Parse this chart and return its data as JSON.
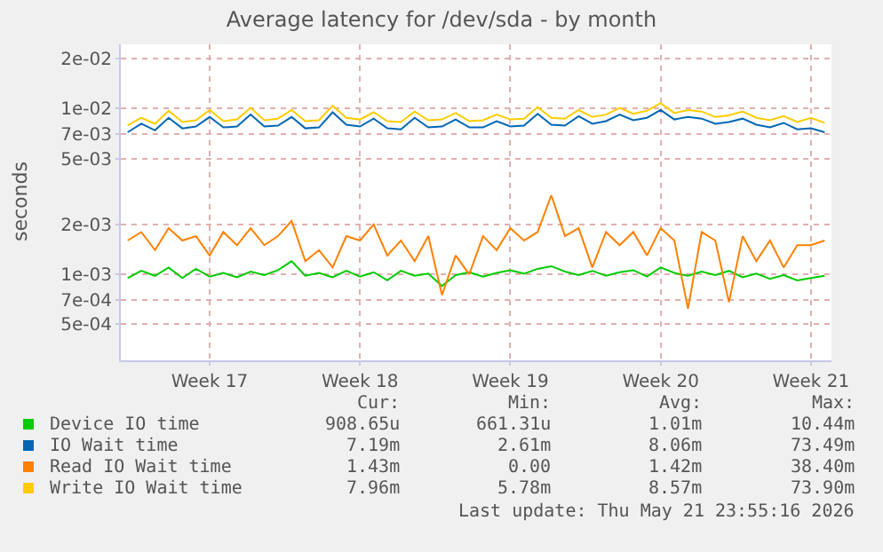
{
  "chart_data": {
    "type": "line",
    "title": "Average latency for /dev/sda - by month",
    "ylabel": "seconds",
    "categories": [
      null,
      null,
      null,
      null,
      null,
      null,
      "Week 17",
      null,
      null,
      null,
      null,
      null,
      null,
      null,
      null,
      null,
      null,
      "Week 18",
      null,
      null,
      null,
      null,
      null,
      null,
      null,
      null,
      null,
      null,
      "Week 19",
      null,
      null,
      null,
      null,
      null,
      null,
      null,
      null,
      null,
      null,
      "Week 20",
      null,
      null,
      null,
      null,
      null,
      null,
      null,
      null,
      null,
      null,
      "Week 21",
      null
    ],
    "series": [
      {
        "name": "Device IO time",
        "color": "#00cc00",
        "values": [
          0.00095,
          0.00105,
          0.00098,
          0.0011,
          0.00095,
          0.00108,
          0.00097,
          0.00102,
          0.00096,
          0.00104,
          0.00099,
          0.00106,
          0.0012,
          0.00098,
          0.00102,
          0.00096,
          0.00105,
          0.00097,
          0.00103,
          0.00092,
          0.00105,
          0.00098,
          0.00101,
          0.00085,
          0.00099,
          0.00103,
          0.00097,
          0.00102,
          0.00106,
          0.00101,
          0.00108,
          0.00112,
          0.00104,
          0.00099,
          0.00105,
          0.00098,
          0.00103,
          0.00106,
          0.00097,
          0.0011,
          0.00102,
          0.00098,
          0.00104,
          0.00099,
          0.00105,
          0.00096,
          0.00101,
          0.00094,
          0.00099,
          0.00092,
          0.00095,
          0.00098
        ]
      },
      {
        "name": "IO Wait time",
        "color": "#0066b3",
        "values": [
          0.0072,
          0.0081,
          0.0074,
          0.0088,
          0.0076,
          0.0078,
          0.0089,
          0.0077,
          0.0078,
          0.0092,
          0.0078,
          0.0079,
          0.0089,
          0.0076,
          0.0077,
          0.0095,
          0.008,
          0.0078,
          0.0087,
          0.0076,
          0.0075,
          0.0088,
          0.0077,
          0.0078,
          0.0086,
          0.0077,
          0.0077,
          0.0084,
          0.0078,
          0.0079,
          0.0093,
          0.008,
          0.0079,
          0.009,
          0.0081,
          0.0084,
          0.0092,
          0.0085,
          0.0088,
          0.0098,
          0.0086,
          0.0089,
          0.0087,
          0.0081,
          0.0083,
          0.0087,
          0.008,
          0.0077,
          0.0082,
          0.0075,
          0.0076,
          0.0072
        ]
      },
      {
        "name": "Read IO Wait time",
        "color": "#ff8000",
        "values": [
          0.0016,
          0.0018,
          0.0014,
          0.0019,
          0.0016,
          0.0017,
          0.0013,
          0.0018,
          0.0015,
          0.0019,
          0.0015,
          0.0017,
          0.0021,
          0.0012,
          0.0014,
          0.0011,
          0.0017,
          0.0016,
          0.002,
          0.0013,
          0.0016,
          0.0012,
          0.0017,
          0.00075,
          0.0013,
          0.001,
          0.0017,
          0.0014,
          0.0019,
          0.0016,
          0.0018,
          0.003,
          0.0017,
          0.0019,
          0.0011,
          0.0018,
          0.0015,
          0.0018,
          0.0013,
          0.0019,
          0.0016,
          0.00062,
          0.0018,
          0.0016,
          0.00068,
          0.0017,
          0.0012,
          0.0016,
          0.0011,
          0.0015,
          0.0015,
          0.0016
        ]
      },
      {
        "name": "Write IO Wait time",
        "color": "#ffcc00",
        "values": [
          0.0079,
          0.0088,
          0.0081,
          0.0097,
          0.0083,
          0.0085,
          0.0098,
          0.0084,
          0.0086,
          0.0101,
          0.0085,
          0.0087,
          0.0098,
          0.0084,
          0.0085,
          0.0104,
          0.0088,
          0.0086,
          0.0095,
          0.0084,
          0.0083,
          0.0096,
          0.0085,
          0.0086,
          0.0094,
          0.0084,
          0.0085,
          0.0092,
          0.0086,
          0.0087,
          0.0102,
          0.0088,
          0.0087,
          0.0098,
          0.0089,
          0.0092,
          0.0101,
          0.0093,
          0.0097,
          0.0108,
          0.0094,
          0.0098,
          0.0096,
          0.0089,
          0.0091,
          0.0096,
          0.0088,
          0.0085,
          0.009,
          0.0083,
          0.0088,
          0.0082
        ]
      }
    ],
    "log": "y",
    "ylim": [
      0.000303,
      0.0244
    ],
    "yticks": [
      {
        "value": 0.0005,
        "label": "5e-04"
      },
      {
        "value": 0.0007,
        "label": "7e-04"
      },
      {
        "value": 0.001,
        "label": "1e-03"
      },
      {
        "value": 0.002,
        "label": "2e-03"
      },
      {
        "value": 0.005,
        "label": "5e-03"
      },
      {
        "value": 0.007,
        "label": "7e-03"
      },
      {
        "value": 0.01,
        "label": "1e-02"
      },
      {
        "value": 0.02,
        "label": "2e-02"
      }
    ],
    "grid": true,
    "legend": "bottom left",
    "line_style": "solid",
    "marker": "none",
    "annotations": [
      "Cur:",
      "Min:",
      "Avg:",
      "Max:",
      "908.65u",
      "661.31u",
      "1.01m",
      "10.44m",
      "7.19m",
      "2.61m",
      "8.06m",
      "73.49m",
      "1.43m",
      "0.00",
      "1.42m",
      "38.40m",
      "7.96m",
      "5.78m",
      "8.57m",
      "73.90m",
      "Last update: Thu May 21 23:55:16 2026"
    ]
  }
}
